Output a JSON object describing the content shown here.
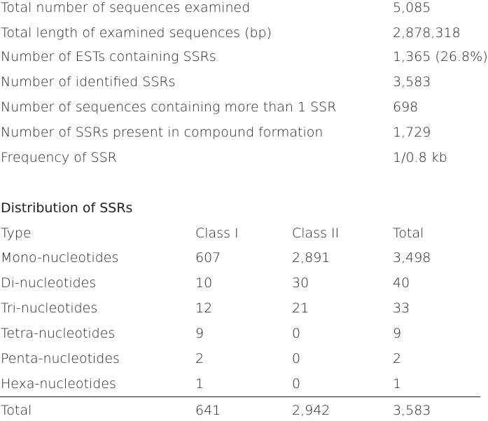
{
  "summary": [
    {
      "label": "Total number of sequences examined",
      "value": "5,085"
    },
    {
      "label": "Total length of examined sequences (bp)",
      "value": "2,878,318"
    },
    {
      "label": "Number of ESTs containing SSRs",
      "value": "1,365 (26.8%)"
    },
    {
      "label": "Number of identified SSRs",
      "value": "3,583"
    },
    {
      "label": "Number of sequences containing more than 1 SSR",
      "value": "698"
    },
    {
      "label": "Number of SSRs present in compound formation",
      "value": "1,729"
    },
    {
      "label": "Frequency of SSR",
      "value": "1/0.8 kb"
    }
  ],
  "distribution": {
    "heading": "Distribution of SSRs",
    "columns": [
      "Type",
      "Class I",
      "Class II",
      "Total"
    ],
    "rows": [
      [
        "Mono-nucleotides",
        "607",
        "2,891",
        "3,498"
      ],
      [
        "Di-nucleotides",
        "10",
        "30",
        "40"
      ],
      [
        "Tri-nucleotides",
        "12",
        "21",
        "33"
      ],
      [
        "Tetra-nucleotides",
        "9",
        "0",
        "9"
      ],
      [
        "Penta-nucleotides",
        "2",
        "0",
        "2"
      ],
      [
        "Hexa-nucleotides",
        "1",
        "0",
        "1"
      ]
    ],
    "total": [
      "Total",
      "641",
      "2,942",
      "3,583"
    ]
  }
}
